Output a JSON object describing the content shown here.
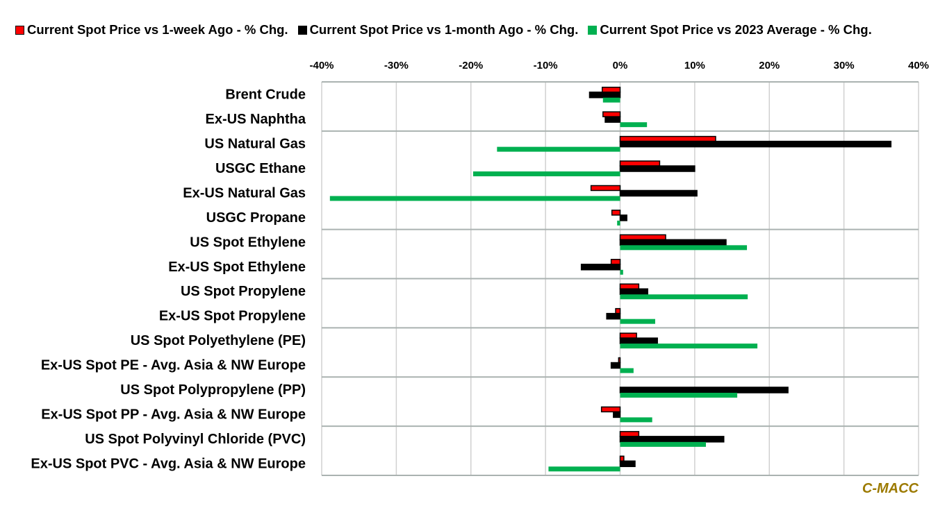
{
  "chart_data": {
    "type": "bar",
    "orientation": "horizontal",
    "title": "",
    "xlabel": "",
    "ylabel": "",
    "xlim": [
      -40,
      40
    ],
    "xticks": [
      "-40%",
      "-30%",
      "-20%",
      "-10%",
      "0%",
      "10%",
      "20%",
      "30%",
      "40%"
    ],
    "xtick_values": [
      -40,
      -30,
      -20,
      -10,
      0,
      10,
      20,
      30,
      40
    ],
    "grid": true,
    "legend_position": "top",
    "categories": [
      "Brent Crude",
      "Ex-US Naphtha",
      "US Natural Gas",
      "USGC Ethane",
      "Ex-US Natural Gas",
      "USGC Propane",
      "US Spot Ethylene",
      "Ex-US Spot Ethylene",
      "US Spot Propylene",
      "Ex-US Spot Propylene",
      "US Spot Polyethylene (PE)",
      "Ex-US Spot PE - Avg. Asia & NW Europe",
      "US Spot Polypropylene (PP)",
      "Ex-US Spot PP - Avg. Asia & NW Europe",
      "US Spot Polyvinyl Chloride (PVC)",
      "Ex-US Spot PVC - Avg. Asia & NW Europe"
    ],
    "group_separators_after": [
      1,
      5,
      7,
      9,
      11,
      13
    ],
    "series": [
      {
        "name": "Current Spot Price vs 1-week Ago - % Chg.",
        "color": "#ff0000",
        "outlined": true,
        "values": [
          -2.4,
          -2.3,
          12.8,
          5.3,
          -3.9,
          -1.1,
          6.1,
          -1.2,
          2.5,
          -0.6,
          2.2,
          -0.2,
          0,
          -2.5,
          2.5,
          0.5
        ]
      },
      {
        "name": "Current Spot Price vs 1-month Ago - % Chg.",
        "color": "#000000",
        "outlined": true,
        "values": [
          -4.1,
          -2.0,
          36.3,
          10.0,
          10.3,
          0.9,
          14.2,
          -5.2,
          3.7,
          -1.8,
          5.0,
          -1.2,
          22.5,
          -0.9,
          13.9,
          2.0
        ]
      },
      {
        "name": "Current Spot Price vs 2023 Average - % Chg.",
        "color": "#00b050",
        "outlined": false,
        "values": [
          -2.3,
          3.6,
          -16.5,
          -19.7,
          -38.9,
          -0.4,
          17.0,
          0.4,
          17.1,
          4.7,
          18.4,
          1.8,
          15.7,
          4.3,
          11.5,
          -9.6
        ]
      }
    ]
  },
  "brand": "C-MACC"
}
